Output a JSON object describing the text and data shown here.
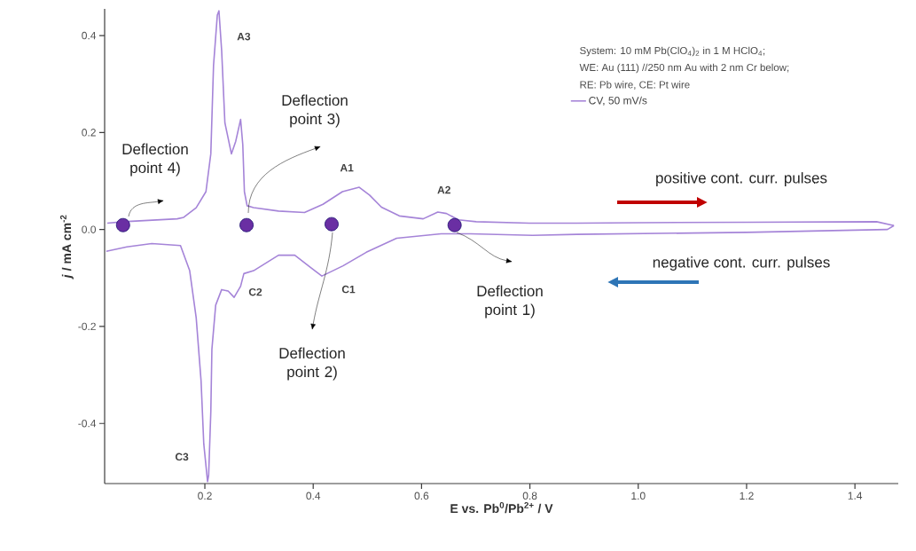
{
  "chart_data": {
    "type": "line",
    "xlabel": "E vs. Pb$^{0}$/Pb$^{2+}$ / V",
    "ylabel": "*j* / mA cm$^{-2}$",
    "xlim": [
      0.015,
      1.48
    ],
    "ylim": [
      -0.524,
      0.455
    ],
    "xticks": [
      0.2,
      0.4,
      0.6,
      0.8,
      {
        "value": 1.0,
        "label": "1.0"
      },
      1.2,
      1.4
    ],
    "yticks": [
      -0.4,
      -0.2,
      {
        "value": 0,
        "label": "0.0"
      },
      0.2,
      0.4
    ],
    "legend": "top right",
    "series": [
      {
        "name": "CV, 50 mV/s",
        "color": "#a584d8",
        "marker": "none",
        "line_style": "solid",
        "x": [
          0.02,
          0.05,
          0.149,
          0.161,
          0.184,
          0.202,
          0.211,
          0.216,
          0.223,
          0.226,
          0.231,
          0.237,
          0.249,
          0.257,
          0.266,
          0.27,
          0.273,
          0.278,
          0.29,
          0.336,
          0.384,
          0.418,
          0.454,
          0.485,
          0.504,
          0.526,
          0.559,
          0.603,
          0.63,
          0.646,
          0.668,
          0.701,
          0.799,
          0.887,
          1.0,
          1.2,
          1.44,
          1.472
        ],
        "values": [
          0.013,
          0.016,
          0.022,
          0.025,
          0.045,
          0.078,
          0.156,
          0.338,
          0.442,
          0.451,
          0.369,
          0.22,
          0.156,
          0.182,
          0.227,
          0.175,
          0.078,
          0.049,
          0.045,
          0.038,
          0.035,
          0.052,
          0.078,
          0.087,
          0.071,
          0.046,
          0.028,
          0.022,
          0.036,
          0.033,
          0.02,
          0.016,
          0.013,
          0.013,
          0.014,
          0.015,
          0.016,
          0.008
        ]
      },
      {
        "color": "#a584d8",
        "marker": "none",
        "line_style": "solid",
        "x": [
          0.018,
          0.056,
          0.102,
          0.155,
          0.172,
          0.184,
          0.193,
          0.198,
          0.205,
          0.207,
          0.211,
          0.213,
          0.22,
          0.231,
          0.243,
          0.254,
          0.266,
          0.272,
          0.29,
          0.336,
          0.366,
          0.395,
          0.416,
          0.455,
          0.498,
          0.554,
          0.636,
          0.69,
          0.805,
          0.887,
          1.2,
          1.46,
          1.472
        ],
        "values": [
          -0.045,
          -0.036,
          -0.029,
          -0.033,
          -0.085,
          -0.182,
          -0.312,
          -0.442,
          -0.52,
          -0.507,
          -0.376,
          -0.247,
          -0.156,
          -0.124,
          -0.127,
          -0.14,
          -0.117,
          -0.091,
          -0.085,
          -0.053,
          -0.053,
          -0.078,
          -0.096,
          -0.075,
          -0.047,
          -0.018,
          -0.009,
          -0.009,
          -0.012,
          -0.01,
          -0.006,
          0.0,
          0.008
        ]
      },
      {
        "type": "scatter",
        "color": "#6a2fa3",
        "marker": "circle",
        "x": [
          0.049,
          0.277,
          0.434,
          0.661
        ],
        "values": [
          0.009,
          0.009,
          0.011,
          0.009
        ]
      }
    ],
    "annotations": [
      "System: 10 mM Pb(ClO$_{4}$)$_{2}$ in 1 M HClO$_{4}$;",
      "WE: Au (111) //250 nm Au with 2 nm Cr below;",
      "RE: Pb wire, CE: Pt wire",
      {
        "text": "A3",
        "x": 0.226,
        "y": 0.451
      },
      {
        "text": "A1",
        "x": 0.485,
        "y": 0.087
      },
      {
        "text": "A2",
        "x": 0.63,
        "y": 0.036
      },
      {
        "text": "C1",
        "x": 0.416,
        "y": -0.096
      },
      {
        "text": "C2",
        "x": 0.254,
        "y": -0.14
      },
      {
        "text": "C3",
        "x": 0.205,
        "y": -0.52
      },
      "Deflection point 1)",
      "Deflection point 2)",
      "Deflection point 3)",
      "Deflection point 4)",
      "positive cont. curr. pulses",
      "negative cont. curr. pulses"
    ]
  }
}
